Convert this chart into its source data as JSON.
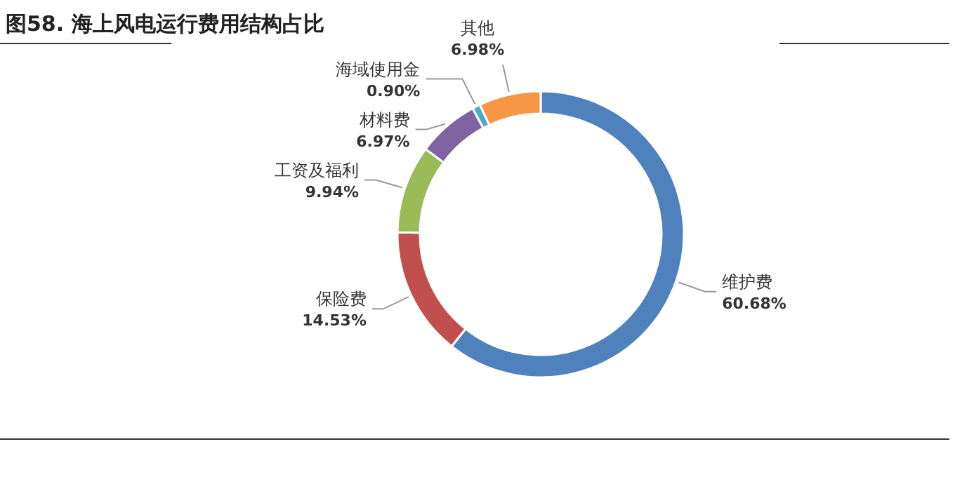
{
  "chart_data": {
    "type": "donut",
    "title": "图58. 海上风电运行费用结构占比",
    "categories": [
      "维护费",
      "保险费",
      "工资及福利",
      "材料费",
      "海域使用金",
      "其他"
    ],
    "values": [
      60.68,
      14.53,
      9.94,
      6.97,
      0.9,
      6.98
    ],
    "value_labels": [
      "60.68%",
      "14.53%",
      "9.94%",
      "6.97%",
      "0.90%",
      "6.98%"
    ],
    "colors": [
      "#4f81bd",
      "#c0504d",
      "#9bbb59",
      "#8064a2",
      "#4bacc6",
      "#f79646"
    ]
  }
}
